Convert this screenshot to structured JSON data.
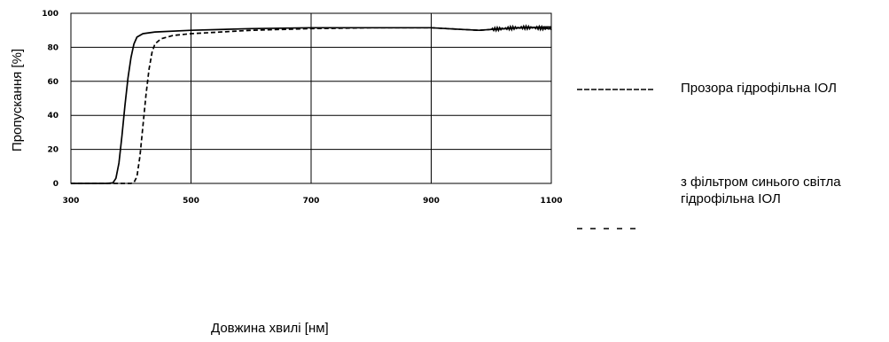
{
  "chart_data": {
    "type": "line",
    "title": "",
    "xlabel": "Довжина хвилі [нм]",
    "ylabel": "Пропускання [%]",
    "xlim": [
      300,
      1100
    ],
    "ylim": [
      0,
      100
    ],
    "x_ticks": [
      "300",
      "500",
      "700",
      "900",
      "1100"
    ],
    "y_ticks": [
      "0",
      "20",
      "40",
      "60",
      "80",
      "100"
    ],
    "grid": true,
    "legend_placement": "right",
    "series": [
      {
        "name": "Прозора гідрофільна ІОЛ",
        "style": "dashed-long",
        "points": [
          [
            300,
            0
          ],
          [
            360,
            0
          ],
          [
            370,
            0.3
          ],
          [
            375,
            3
          ],
          [
            380,
            12
          ],
          [
            385,
            28
          ],
          [
            390,
            46
          ],
          [
            395,
            62
          ],
          [
            400,
            74
          ],
          [
            405,
            82
          ],
          [
            410,
            86
          ],
          [
            420,
            88
          ],
          [
            440,
            89
          ],
          [
            500,
            90
          ],
          [
            600,
            91
          ],
          [
            700,
            91.5
          ],
          [
            800,
            91.5
          ],
          [
            900,
            91.5
          ],
          [
            950,
            90.5
          ],
          [
            980,
            90
          ],
          [
            1000,
            90.5
          ],
          [
            1050,
            91.5
          ],
          [
            1100,
            92
          ]
        ]
      },
      {
        "name": "з фільтром синього світла гідрофільна ІОЛ",
        "style": "dashed-short",
        "points": [
          [
            300,
            0
          ],
          [
            400,
            0
          ],
          [
            405,
            0.5
          ],
          [
            410,
            4
          ],
          [
            415,
            16
          ],
          [
            420,
            34
          ],
          [
            425,
            52
          ],
          [
            430,
            67
          ],
          [
            435,
            77
          ],
          [
            440,
            82
          ],
          [
            450,
            85
          ],
          [
            470,
            87
          ],
          [
            500,
            88
          ],
          [
            600,
            90
          ],
          [
            700,
            91
          ],
          [
            800,
            91.5
          ],
          [
            900,
            91.5
          ],
          [
            950,
            90.5
          ],
          [
            980,
            90
          ],
          [
            1000,
            90.5
          ],
          [
            1050,
            91.5
          ],
          [
            1100,
            92
          ]
        ]
      }
    ]
  }
}
